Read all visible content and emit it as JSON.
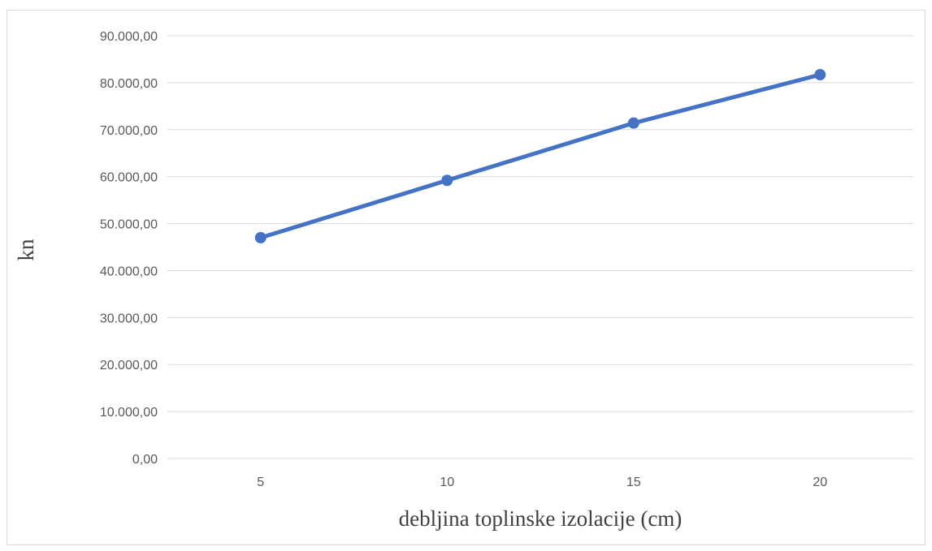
{
  "chart_data": {
    "type": "line",
    "title": "",
    "xlabel": "debljina toplinske izolacije (cm)",
    "ylabel": "kn",
    "categories": [
      "5",
      "10",
      "15",
      "20"
    ],
    "series": [
      {
        "values": [
          47000,
          59200,
          71400,
          81700
        ],
        "color": "#4472c4"
      }
    ],
    "ylim": [
      0,
      90000
    ],
    "yticks": [
      0,
      10000,
      20000,
      30000,
      40000,
      50000,
      60000,
      70000,
      80000,
      90000
    ],
    "ytick_labels": [
      "0,00",
      "10.000,00",
      "20.000,00",
      "30.000,00",
      "40.000,00",
      "50.000,00",
      "60.000,00",
      "70.000,00",
      "80.000,00",
      "90.000,00"
    ],
    "grid": true,
    "legend": "none"
  }
}
